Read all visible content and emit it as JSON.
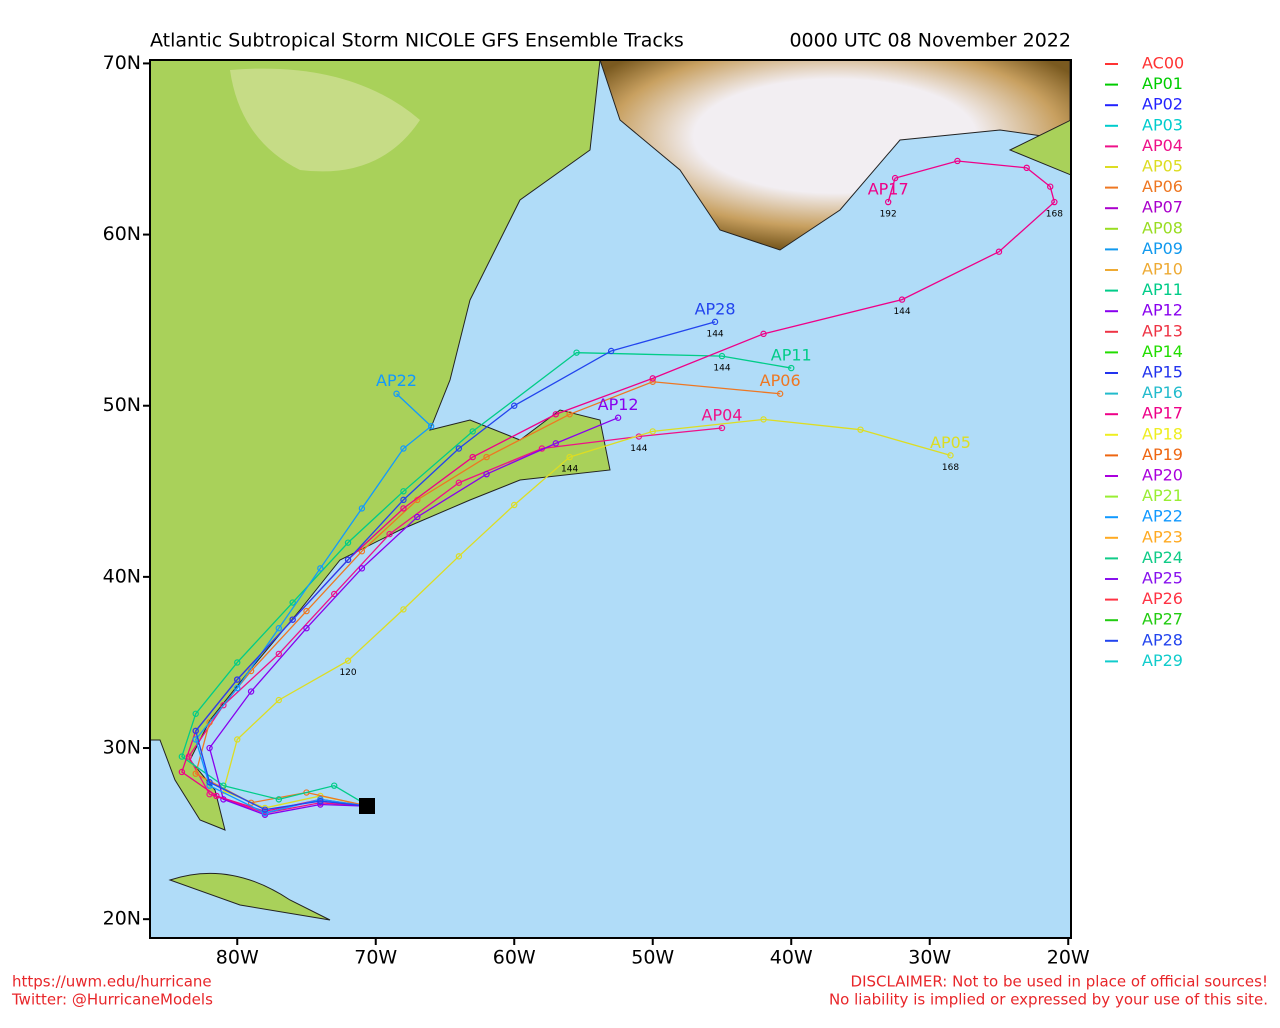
{
  "map": {
    "title": "Atlantic Subtropical Storm NICOLE GFS Ensemble Tracks",
    "date": "0000 UTC 08 November 2022",
    "xlim": [
      -86.3,
      -19.8
    ],
    "ylim": [
      18.9,
      70.2
    ],
    "xticks": [
      {
        "value": -80,
        "label": "80W"
      },
      {
        "value": -70,
        "label": "70W"
      },
      {
        "value": -60,
        "label": "60W"
      },
      {
        "value": -50,
        "label": "50W"
      },
      {
        "value": -40,
        "label": "40W"
      },
      {
        "value": -30,
        "label": "30W"
      },
      {
        "value": -20,
        "label": "20W"
      }
    ],
    "yticks": [
      {
        "value": 20,
        "label": "20N"
      },
      {
        "value": 30,
        "label": "30N"
      },
      {
        "value": 40,
        "label": "40N"
      },
      {
        "value": 50,
        "label": "50N"
      },
      {
        "value": 60,
        "label": "60N"
      },
      {
        "value": 70,
        "label": "70N"
      }
    ],
    "series": [
      {
        "name": "AC00",
        "color": "#ff3333"
      },
      {
        "name": "AP01",
        "color": "#00cc00"
      },
      {
        "name": "AP02",
        "color": "#2222ff"
      },
      {
        "name": "AP03",
        "color": "#00cccc"
      },
      {
        "name": "AP04",
        "color": "#ee1188",
        "lon": [
          -70.5,
          -74,
          -78,
          -82,
          -83.5,
          -81,
          -77,
          -73,
          -69,
          -64,
          -58,
          -51,
          -45
        ],
        "lat": [
          26.6,
          26.8,
          26.2,
          27.3,
          29.5,
          32.5,
          35.5,
          39,
          42.5,
          45.5,
          47.5,
          48.2,
          48.7
        ],
        "hours": [
          null,
          null,
          null,
          null,
          null,
          null,
          null,
          null,
          null,
          null,
          null,
          144,
          null
        ]
      },
      {
        "name": "AP05",
        "color": "#dddd22",
        "lon": [
          -70.5,
          -74,
          -78,
          -81,
          -80,
          -77,
          -72,
          -68,
          -64,
          -60,
          -56,
          -50,
          -42,
          -35,
          -28.5
        ],
        "lat": [
          26.6,
          27.2,
          26.5,
          27.5,
          30.5,
          32.8,
          35.1,
          38.1,
          41.2,
          44.2,
          47,
          48.5,
          49.2,
          48.6,
          47.1
        ],
        "hours": [
          null,
          null,
          null,
          null,
          null,
          null,
          120,
          null,
          null,
          null,
          144,
          null,
          null,
          null,
          168
        ]
      },
      {
        "name": "AP06",
        "color": "#ee7722",
        "lon": [
          -70.5,
          -75,
          -79,
          -83,
          -82,
          -79,
          -75,
          -71,
          -67,
          -62,
          -56,
          -50,
          -40.8
        ],
        "lat": [
          26.6,
          27.4,
          26.8,
          28.5,
          31.5,
          34.5,
          38,
          41.5,
          44.5,
          47,
          49.5,
          51.4,
          50.7
        ]
      },
      {
        "name": "AP07",
        "color": "#aa00cc"
      },
      {
        "name": "AP08",
        "color": "#99dd22"
      },
      {
        "name": "AP09",
        "color": "#1199ee"
      },
      {
        "name": "AP10",
        "color": "#eeaa33"
      },
      {
        "name": "AP11",
        "color": "#00cc88",
        "lon": [
          -70.5,
          -73,
          -77,
          -81,
          -84,
          -83,
          -80,
          -76,
          -72,
          -68,
          -63,
          -55.5,
          -45,
          -40
        ],
        "lat": [
          26.6,
          27.8,
          27,
          27.8,
          29.5,
          32,
          35,
          38.5,
          42,
          45,
          48.5,
          53.1,
          52.9,
          52.2
        ],
        "hours": [
          null,
          null,
          null,
          null,
          null,
          null,
          null,
          null,
          null,
          null,
          null,
          null,
          144,
          null
        ]
      },
      {
        "name": "AP12",
        "color": "#8800ee",
        "lon": [
          -70.5,
          -74,
          -78,
          -81,
          -82,
          -79,
          -75,
          -71,
          -67,
          -62,
          -57,
          -52.5
        ],
        "lat": [
          26.6,
          26.7,
          26.1,
          27,
          30,
          33.3,
          37,
          40.5,
          43.5,
          46,
          47.8,
          49.3
        ]
      },
      {
        "name": "AP13",
        "color": "#ee3344"
      },
      {
        "name": "AP14",
        "color": "#22dd00"
      },
      {
        "name": "AP15",
        "color": "#2233ee"
      },
      {
        "name": "AP16",
        "color": "#22bbcc"
      },
      {
        "name": "AP17",
        "color": "#ee0088",
        "lon": [
          -70.5,
          -74,
          -78,
          -81.5,
          -84,
          -83,
          -80,
          -76,
          -72,
          -68,
          -63,
          -57,
          -50,
          -42,
          -32,
          -25,
          -21,
          -21.3,
          -23,
          -28,
          -32.5,
          -33
        ],
        "lat": [
          26.6,
          27,
          26.3,
          27.2,
          28.6,
          31,
          34,
          37.5,
          41,
          44,
          47,
          49.5,
          51.6,
          54.2,
          56.2,
          59,
          61.9,
          62.8,
          63.9,
          64.3,
          63.3,
          61.9
        ],
        "hours": [
          null,
          null,
          null,
          null,
          null,
          null,
          null,
          null,
          null,
          null,
          null,
          null,
          null,
          null,
          144,
          null,
          168,
          null,
          null,
          null,
          null,
          192
        ]
      },
      {
        "name": "AP18",
        "color": "#eeee22"
      },
      {
        "name": "AP19",
        "color": "#ee6611"
      },
      {
        "name": "AP20",
        "color": "#aa00dd"
      },
      {
        "name": "AP21",
        "color": "#99ee33"
      },
      {
        "name": "AP22",
        "color": "#1199ff",
        "lon": [
          -70.5,
          -74,
          -78,
          -82,
          -83,
          -80,
          -77,
          -74,
          -71,
          -68,
          -66,
          -68.5
        ],
        "lat": [
          26.6,
          27,
          26.2,
          27.8,
          30.5,
          33.5,
          37,
          40.5,
          44,
          47.5,
          48.8,
          50.7
        ]
      },
      {
        "name": "AP23",
        "color": "#ffaa22"
      },
      {
        "name": "AP24",
        "color": "#11cc88"
      },
      {
        "name": "AP25",
        "color": "#8811ee"
      },
      {
        "name": "AP26",
        "color": "#ff3344"
      },
      {
        "name": "AP27",
        "color": "#22cc11"
      },
      {
        "name": "AP28",
        "color": "#2244ee",
        "lon": [
          -70.5,
          -74,
          -78,
          -82,
          -83,
          -80,
          -76,
          -72,
          -68,
          -64,
          -60,
          -53,
          -45.5
        ],
        "lat": [
          26.6,
          26.9,
          26.4,
          28,
          31,
          34,
          37.5,
          41,
          44.5,
          47.5,
          50,
          53.2,
          54.9
        ],
        "hours": [
          null,
          null,
          null,
          null,
          null,
          null,
          null,
          null,
          null,
          null,
          null,
          null,
          144
        ]
      },
      {
        "name": "AP29",
        "color": "#11cccc"
      }
    ],
    "footer_left": [
      "https://uwm.edu/hurricane",
      "Twitter: @HurricaneModels"
    ],
    "footer_right": [
      "DISCLAIMER: Not to be used in place of official sources!",
      "No liability is implied or expressed by your use of this site."
    ]
  }
}
